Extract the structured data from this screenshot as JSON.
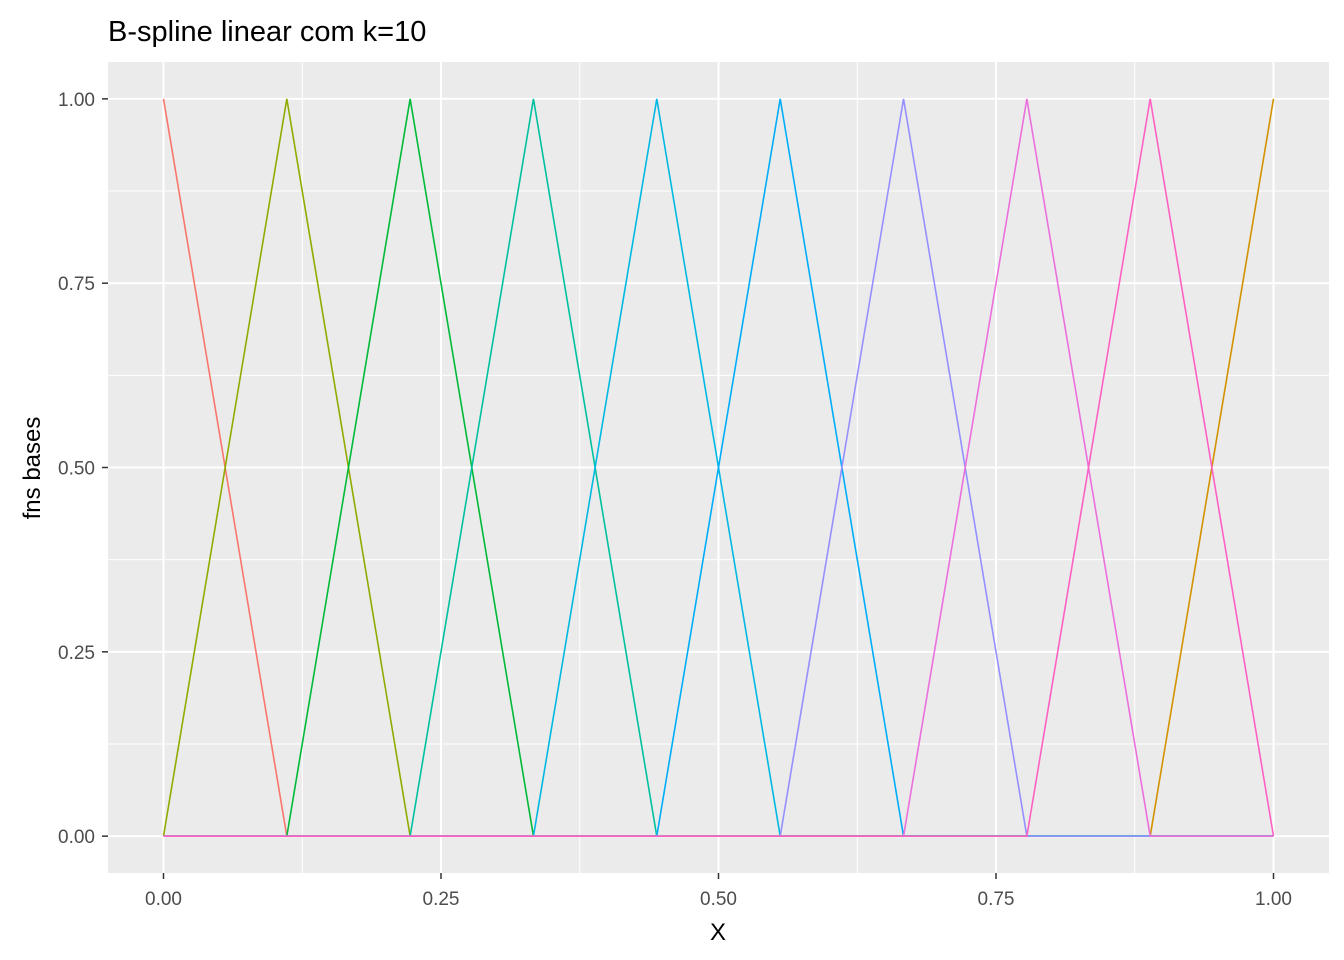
{
  "chart_data": {
    "type": "line",
    "title": "B-spline linear com k=10",
    "xlabel": "X",
    "ylabel": "fns bases",
    "xlim": [
      -0.05,
      1.05
    ],
    "ylim": [
      -0.05,
      1.05
    ],
    "x_ticks": [
      0.0,
      0.25,
      0.5,
      0.75,
      1.0
    ],
    "x_tick_labels": [
      "0.00",
      "0.25",
      "0.50",
      "0.75",
      "1.00"
    ],
    "y_ticks": [
      0.0,
      0.25,
      0.5,
      0.75,
      1.0
    ],
    "y_tick_labels": [
      "0.00",
      "0.25",
      "0.50",
      "0.75",
      "1.00"
    ],
    "grid": true,
    "legend": "none",
    "panel_background": "#EBEBEB",
    "grid_color": "#FFFFFF",
    "series": [
      {
        "color": "#F8766D",
        "x": [
          0,
          0.1111,
          1
        ],
        "y": [
          1,
          0,
          0
        ]
      },
      {
        "color": "#D39200",
        "x": [
          0,
          0.8889,
          1
        ],
        "y": [
          0,
          0,
          1
        ]
      },
      {
        "color": "#93AA00",
        "x": [
          0,
          0.1111,
          0.2222,
          1
        ],
        "y": [
          0,
          1,
          0,
          0
        ]
      },
      {
        "color": "#00BA38",
        "x": [
          0,
          0.1111,
          0.2222,
          0.3333,
          1
        ],
        "y": [
          0,
          0,
          1,
          0,
          0
        ]
      },
      {
        "color": "#00C19F",
        "x": [
          0,
          0.2222,
          0.3333,
          0.4444,
          1
        ],
        "y": [
          0,
          0,
          1,
          0,
          0
        ]
      },
      {
        "color": "#00B9E3",
        "x": [
          0,
          0.3333,
          0.4444,
          0.5556,
          1
        ],
        "y": [
          0,
          0,
          1,
          0,
          0
        ]
      },
      {
        "color": "#00ADFA",
        "x": [
          0,
          0.4444,
          0.5556,
          0.6667,
          1
        ],
        "y": [
          0,
          0,
          1,
          0,
          0
        ]
      },
      {
        "color": "#9590FF",
        "x": [
          0,
          0.5556,
          0.6667,
          0.7778,
          1
        ],
        "y": [
          0,
          0,
          1,
          0,
          0
        ]
      },
      {
        "color": "#EB6FDD",
        "x": [
          0,
          0.6667,
          0.7778,
          0.8889,
          1
        ],
        "y": [
          0,
          0,
          1,
          0,
          0
        ]
      },
      {
        "color": "#FF61C3",
        "x": [
          0,
          0.7778,
          0.8889,
          1
        ],
        "y": [
          0,
          0,
          1,
          0
        ]
      }
    ]
  }
}
